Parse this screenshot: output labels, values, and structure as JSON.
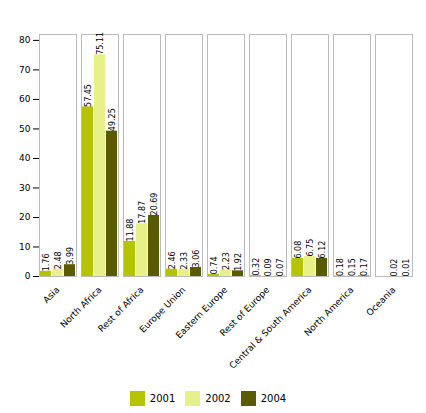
{
  "chart_data": {
    "type": "bar",
    "categories": [
      "Asia",
      "North Africa",
      "Rest of Africa",
      "Europe Union",
      "Eastern Europe",
      "Rest of Europe",
      "Central & South America",
      "North America",
      "Oceania"
    ],
    "series": [
      {
        "name": "2001",
        "color": "#b5c400",
        "values": [
          1.76,
          57.45,
          11.88,
          2.46,
          0.74,
          0.32,
          6.08,
          0.18,
          0.0
        ],
        "value_labels": [
          "1.76",
          "57.45",
          "11.88",
          "2.46",
          "0.74",
          "0.32",
          "6.08",
          "0.18",
          null
        ]
      },
      {
        "name": "2002",
        "color": "#e8f08a",
        "values": [
          2.48,
          75.11,
          17.87,
          2.33,
          2.23,
          0.09,
          6.75,
          0.15,
          0.02
        ],
        "value_labels": [
          "2.48",
          "75.11",
          "17.87",
          "2.33",
          "2.23",
          "0.09",
          "6.75",
          "0.15",
          "0.02"
        ]
      },
      {
        "name": "2004",
        "color": "#5a5a00",
        "values": [
          3.99,
          49.25,
          20.69,
          3.06,
          1.92,
          0.07,
          6.12,
          0.17,
          0.01
        ],
        "value_labels": [
          "3.99",
          "49.25",
          "20.69",
          "3.06",
          "1.92",
          "0.07",
          "6.12",
          "0.17",
          "0.01"
        ]
      }
    ],
    "ylim": [
      0,
      82
    ],
    "yticks": [
      0,
      10,
      20,
      30,
      40,
      50,
      60,
      70,
      80
    ],
    "grid": false,
    "legend": "bottom",
    "data_labels": true
  }
}
